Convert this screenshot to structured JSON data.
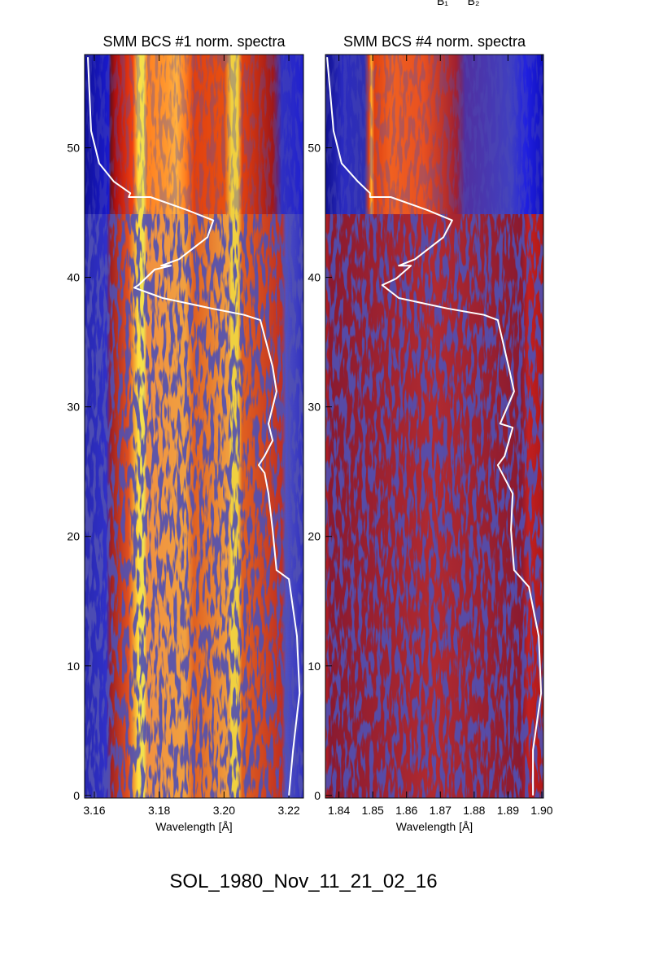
{
  "chart_data": [
    {
      "type": "spectrogram",
      "title": "SMM BCS #1 norm. spectra",
      "xlabel": "Wavelength [Å]",
      "xlim": [
        3.157,
        3.2245
      ],
      "xticks": [
        3.16,
        3.18,
        {
          "value": 3.2,
          "label": "3.20"
        },
        3.22
      ],
      "ylim": [
        -0.2,
        57.2
      ],
      "yticks": [
        0,
        10,
        20,
        30,
        40,
        50
      ],
      "series": [
        {
          "color": "#ffffff",
          "x": [
            3.158,
            3.159,
            3.1615,
            3.166,
            3.1711,
            3.1706,
            3.1773,
            3.1886,
            3.1967,
            3.1949,
            3.1861,
            3.1806,
            3.1836,
            3.1786,
            3.1736,
            3.1723,
            3.1811,
            3.1962,
            3.2062,
            3.2112,
            3.215,
            3.2162,
            3.2137,
            3.215,
            3.2125,
            3.2107,
            3.2125,
            3.2137,
            3.215,
            3.2162,
            3.22,
            3.2225,
            3.2233,
            3.2213,
            3.22
          ],
          "values": [
            57.0,
            51.3,
            48.8,
            47.4,
            46.5,
            46.2,
            46.2,
            45.2,
            44.4,
            43.1,
            41.4,
            40.9,
            40.9,
            40.6,
            39.4,
            39.2,
            38.4,
            37.6,
            37.1,
            36.7,
            33.1,
            31.2,
            28.7,
            27.4,
            26.2,
            25.5,
            24.9,
            23.3,
            20.5,
            17.4,
            16.7,
            12.3,
            7.9,
            3.5,
            0
          ]
        }
      ]
    },
    {
      "type": "spectrogram",
      "title": "SMM BCS #4 norm. spectra",
      "xlabel": "Wavelength [Å]",
      "xlim": [
        1.836,
        1.9005
      ],
      "xticks": [
        1.84,
        1.85,
        1.86,
        1.87,
        1.88,
        1.89,
        {
          "value": 1.9,
          "label": "1.90"
        }
      ],
      "ylim": [
        -0.2,
        57.2
      ],
      "yticks": [
        0,
        10,
        20,
        30,
        40,
        50
      ],
      "series": [
        {
          "color": "#ffffff",
          "x": [
            1.8365,
            1.8384,
            1.8408,
            1.8456,
            1.8492,
            1.8492,
            1.8553,
            1.8661,
            1.8735,
            1.8709,
            1.8625,
            1.8577,
            1.8613,
            1.8569,
            1.8528,
            1.8577,
            1.8721,
            1.8829,
            1.887,
            1.8902,
            1.8918,
            1.8877,
            1.8914,
            1.889,
            1.887,
            1.8914,
            1.8909,
            1.8918,
            1.8962,
            1.8991,
            1.8998,
            1.8974,
            1.8974
          ],
          "values": [
            57.0,
            51.3,
            48.8,
            47.4,
            46.5,
            46.2,
            46.2,
            45.2,
            44.4,
            43.1,
            41.4,
            40.9,
            40.9,
            39.9,
            39.4,
            38.4,
            37.6,
            37.1,
            36.7,
            33.1,
            31.2,
            28.7,
            28.4,
            26.2,
            25.5,
            23.3,
            20.5,
            17.4,
            16.1,
            12.3,
            7.9,
            3.5,
            0
          ]
        }
      ]
    }
  ],
  "annotations": [
    "B₁",
    "B₂"
  ],
  "footer": "SOL_1980_Nov_11_21_02_16"
}
